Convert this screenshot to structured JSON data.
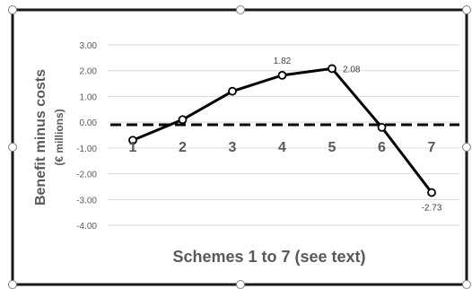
{
  "chart_data": {
    "type": "line",
    "categories": [
      "1",
      "2",
      "3",
      "4",
      "5",
      "6",
      "7"
    ],
    "series": [
      {
        "values": [
          -0.7,
          0.1,
          1.2,
          1.82,
          2.08,
          -0.2,
          -2.73
        ],
        "data_labels": [
          "",
          "",
          "",
          "1.82",
          "2.08",
          "",
          "-2.73"
        ],
        "color": "#000000",
        "marker": "circle-hollow"
      }
    ],
    "reference_line": {
      "value": -0.1,
      "style": "dashed",
      "color": "#000000"
    },
    "ylabel": "Benefit minus costs",
    "ylabel_sub": "(€ millions)",
    "xlabel": "Schemes 1 to 7 (see text)",
    "ylim": [
      -4,
      3
    ],
    "yticks": [
      "3.00",
      "2.00",
      "1.00",
      "0.00",
      "-1.00",
      "-2.00",
      "-3.00",
      "-4.00"
    ],
    "ytick_values": [
      3,
      2,
      1,
      0,
      -1,
      -2,
      -3,
      -4
    ],
    "grid": true,
    "grid_color": "#d9d9d9",
    "text_color": "#595959",
    "legend": "none"
  }
}
